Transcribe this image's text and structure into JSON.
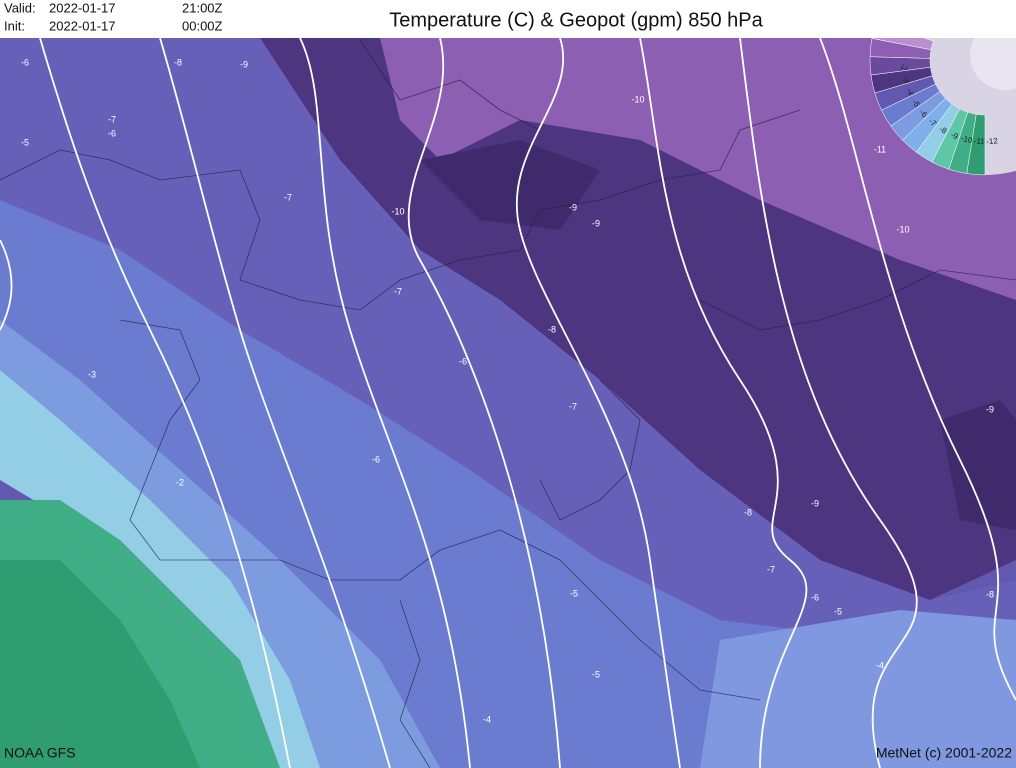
{
  "header": {
    "valid_label": "Valid:",
    "valid_date": "2022-01-17",
    "valid_time": "21:00Z",
    "init_label": "Init:",
    "init_date": "2022-01-17",
    "init_time": "00:00Z"
  },
  "title": "Temperature (C) & Geopot (gpm) 850 hPa",
  "footer": {
    "source": "NOAA GFS",
    "credit": "MetNet (c) 2001-2022"
  },
  "contour_labels": [
    "-6",
    "-8",
    "-9",
    "-7",
    "-6",
    "-5",
    "-10",
    "-11",
    "-10",
    "-7",
    "-9",
    "-9",
    "-10",
    "-7",
    "-8",
    "-6",
    "-3",
    "-7",
    "-9",
    "-6",
    "-2",
    "-9",
    "-8",
    "-7",
    "-6",
    "-5",
    "-8",
    "-5",
    "-5",
    "-4",
    "-4"
  ],
  "legend": {
    "labels": [
      "-2",
      "-3",
      "-4",
      "-5",
      "-6",
      "-7",
      "-8",
      "-9",
      "-10",
      "-11",
      "-12"
    ]
  }
}
